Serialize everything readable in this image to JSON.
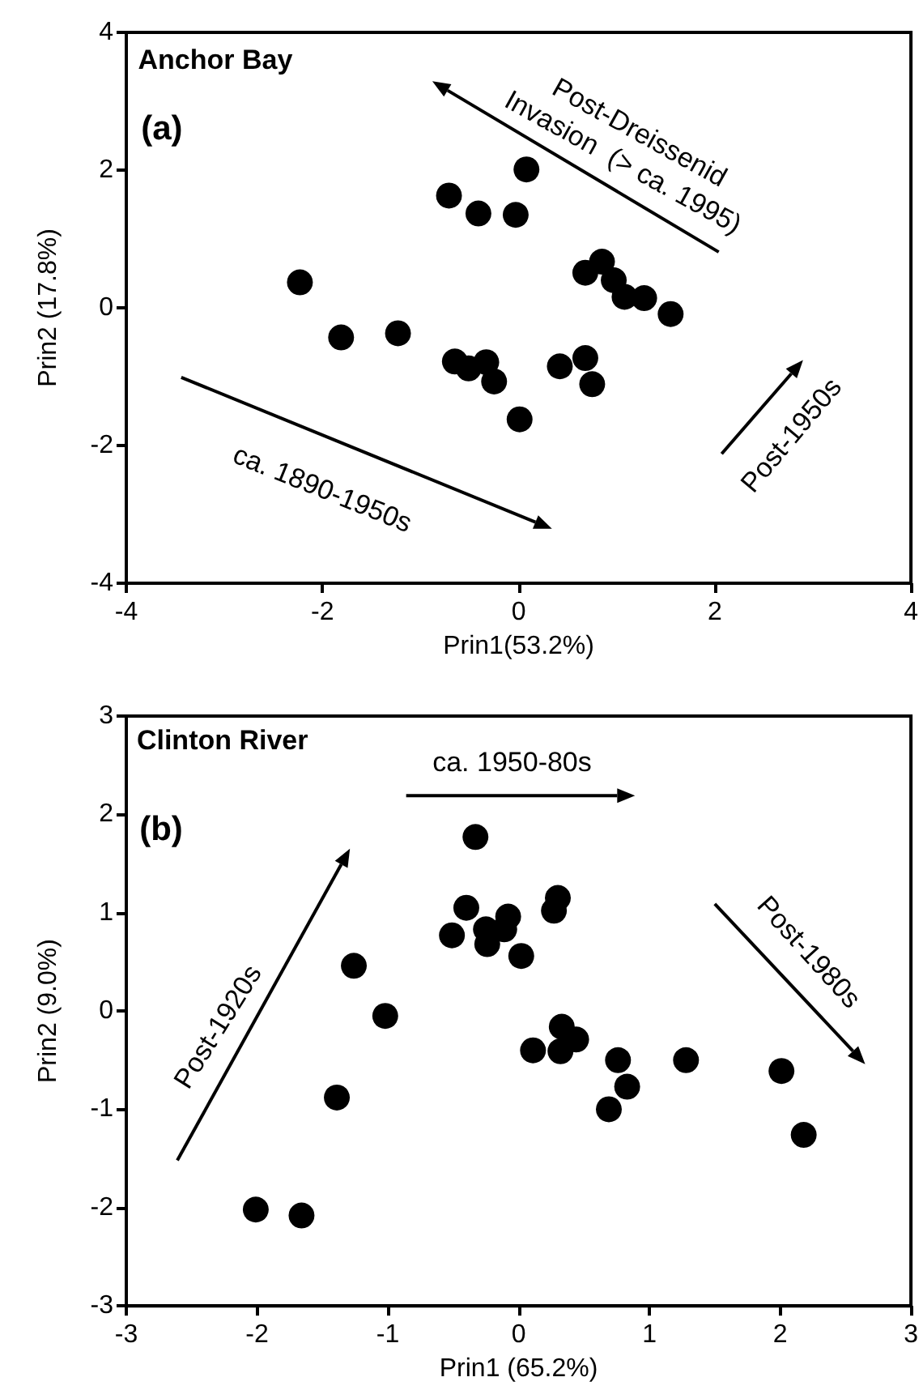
{
  "chart_data": [
    {
      "type": "scatter",
      "title": "Anchor Bay",
      "xlabel": "Prin1(53.2%)",
      "ylabel": "Prin2 (17.8%)",
      "annotations": [
        "(a)",
        "Post-Dreissenid\nInvasion  (> ca. 1995)",
        "ca. 1890-1950s",
        "Post-1950s"
      ],
      "x": [
        -2.23,
        -1.81,
        -1.23,
        -0.71,
        -0.41,
        -0.03,
        0.08,
        -0.65,
        -0.51,
        -0.33,
        -0.25,
        0.01,
        0.42,
        0.68,
        0.75,
        0.68,
        0.85,
        0.97,
        1.08,
        1.28,
        1.55
      ],
      "series": [
        {
          "color": "#000000",
          "values": [
            0.37,
            -0.43,
            -0.37,
            1.63,
            1.37,
            1.35,
            2.01,
            -0.78,
            -0.88,
            -0.79,
            -1.07,
            -1.62,
            -0.85,
            -0.73,
            -1.11,
            0.51,
            0.67,
            0.4,
            0.16,
            0.14,
            -0.09
          ]
        }
      ],
      "xlim": [
        -4,
        4
      ],
      "xticks": [
        -4,
        -2,
        0,
        2,
        4
      ],
      "ylim": [
        -4,
        4
      ],
      "yticks": [
        -4,
        -2,
        0,
        2,
        4
      ],
      "marker": "circle",
      "grid": false
    },
    {
      "type": "scatter",
      "title": "Clinton River",
      "xlabel": "Prin1 (65.2%)",
      "ylabel": "Prin2 (9.0%)",
      "annotations": [
        "(b)",
        "ca. 1950-80s",
        "Post-1920s",
        "Post-1980s"
      ],
      "x": [
        -2.01,
        -1.66,
        -1.39,
        -1.26,
        -1.02,
        -0.33,
        -0.4,
        -0.51,
        -0.25,
        -0.24,
        -0.08,
        -0.11,
        0.02,
        0.3,
        0.27,
        0.33,
        0.44,
        0.32,
        0.11,
        0.76,
        0.83,
        0.69,
        1.28,
        2.01,
        2.18
      ],
      "series": [
        {
          "color": "#000000",
          "values": [
            -2.02,
            -2.08,
            -0.88,
            0.46,
            -0.05,
            1.77,
            1.05,
            0.77,
            0.83,
            0.68,
            0.96,
            0.83,
            0.56,
            1.15,
            1.02,
            -0.16,
            -0.29,
            -0.41,
            -0.4,
            -0.5,
            -0.77,
            -1.0,
            -0.5,
            -0.61,
            -1.26
          ]
        }
      ],
      "xlim": [
        -3,
        3
      ],
      "xticks": [
        -3,
        -2,
        -1,
        0,
        1,
        2,
        3
      ],
      "ylim": [
        -3,
        3
      ],
      "yticks": [
        -3,
        -2,
        -1,
        0,
        1,
        2,
        3
      ],
      "marker": "circle",
      "grid": false
    }
  ]
}
